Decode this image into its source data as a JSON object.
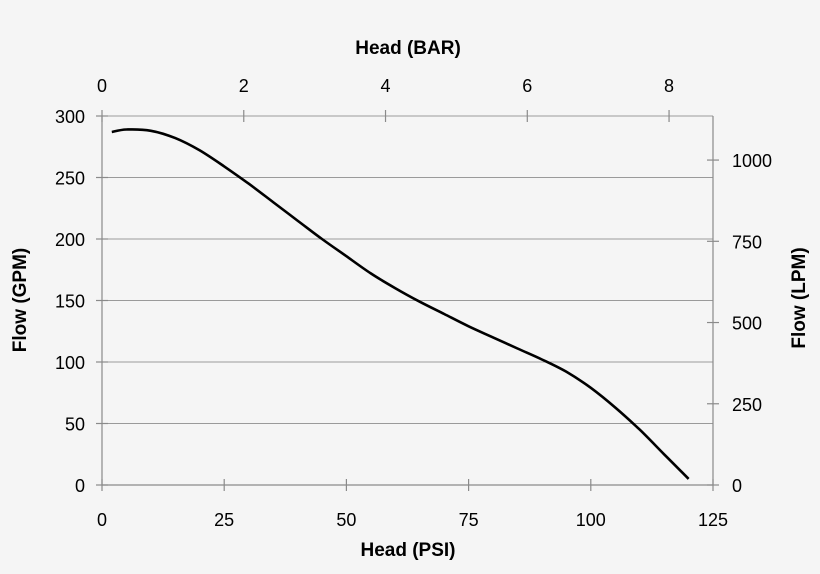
{
  "chart_data": {
    "type": "line",
    "title": "",
    "xlabel": "Head (PSI)",
    "ylabel": "Flow (GPM)",
    "x2label": "Head (BAR)",
    "y2label": "Flow (LPM)",
    "xlim": [
      0,
      125
    ],
    "ylim": [
      0,
      300
    ],
    "x2lim": [
      0,
      8.62
    ],
    "y2lim": [
      0,
      1135.6
    ],
    "xticks": [
      0,
      25,
      50,
      75,
      100,
      125
    ],
    "yticks": [
      0,
      50,
      100,
      150,
      200,
      250,
      300
    ],
    "x2ticks": [
      0,
      2,
      4,
      6,
      8
    ],
    "y2ticks": [
      0,
      250,
      500,
      750,
      1000
    ],
    "grid": "horizontal",
    "series": [
      {
        "x": [
          2,
          5,
          10,
          15,
          20,
          25,
          30,
          35,
          40,
          45,
          50,
          55,
          60,
          65,
          70,
          75,
          80,
          85,
          90,
          95,
          100,
          105,
          110,
          115,
          120
        ],
        "y": [
          287,
          289,
          288,
          282,
          272,
          259,
          245,
          230,
          215,
          200,
          186,
          172,
          160,
          149,
          139,
          129,
          120,
          111,
          102,
          92,
          79,
          63,
          45,
          25,
          5
        ],
        "color": "#000000"
      }
    ]
  }
}
